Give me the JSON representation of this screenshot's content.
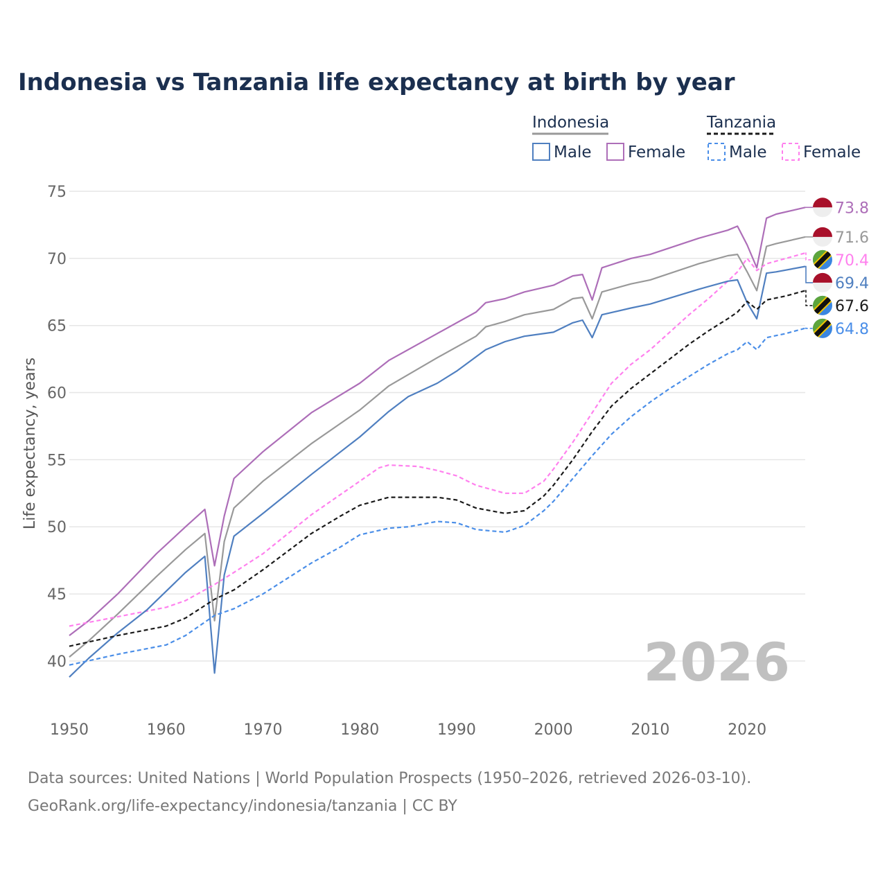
{
  "chart_data": {
    "type": "line",
    "title": "Indonesia vs Tanzania life expectancy at birth by year",
    "ylabel": "Life expectancy, years",
    "xlabel": "",
    "xlim": [
      1950,
      2026
    ],
    "ylim": [
      37,
      76.5
    ],
    "xticks": [
      1950,
      1960,
      1970,
      1980,
      1990,
      2000,
      2010,
      2020
    ],
    "yticks": [
      40,
      45,
      50,
      55,
      60,
      65,
      70,
      75
    ],
    "grid": true,
    "year_watermark": "2026",
    "legend": {
      "placement": "top-right",
      "groups": [
        {
          "name": "Indonesia",
          "items": [
            "Male",
            "Female"
          ]
        },
        {
          "name": "Tanzania",
          "items": [
            "Male",
            "Female"
          ]
        }
      ]
    },
    "series": [
      {
        "id": "idn_female",
        "country": "Indonesia",
        "sex": "Female",
        "name": "Indonesia Female",
        "color": "#ad6eb8",
        "dashed": false,
        "end_label": "73.8",
        "flag": "indonesia",
        "points": [
          [
            1950,
            41.9
          ],
          [
            1952,
            43.0
          ],
          [
            1955,
            45.0
          ],
          [
            1959,
            48.0
          ],
          [
            1962,
            50.0
          ],
          [
            1964,
            51.3
          ],
          [
            1965,
            47.1
          ],
          [
            1966,
            50.8
          ],
          [
            1967,
            53.6
          ],
          [
            1970,
            55.6
          ],
          [
            1975,
            58.5
          ],
          [
            1980,
            60.7
          ],
          [
            1983,
            62.4
          ],
          [
            1988,
            64.4
          ],
          [
            1992,
            66.0
          ],
          [
            1993,
            66.7
          ],
          [
            1995,
            67.0
          ],
          [
            1997,
            67.5
          ],
          [
            2000,
            68.0
          ],
          [
            2002,
            68.7
          ],
          [
            2003,
            68.8
          ],
          [
            2004,
            66.9
          ],
          [
            2005,
            69.3
          ],
          [
            2008,
            70.0
          ],
          [
            2010,
            70.3
          ],
          [
            2015,
            71.5
          ],
          [
            2018,
            72.1
          ],
          [
            2019,
            72.4
          ],
          [
            2020,
            71.0
          ],
          [
            2021,
            69.3
          ],
          [
            2022,
            73.0
          ],
          [
            2023,
            73.3
          ],
          [
            2026,
            73.8
          ]
        ]
      },
      {
        "id": "idn_total",
        "country": "Indonesia",
        "sex": "Total",
        "name": "Indonesia",
        "color": "#999999",
        "dashed": false,
        "end_label": "71.6",
        "flag": "indonesia",
        "points": [
          [
            1950,
            40.3
          ],
          [
            1952,
            41.5
          ],
          [
            1955,
            43.5
          ],
          [
            1959,
            46.3
          ],
          [
            1962,
            48.3
          ],
          [
            1964,
            49.5
          ],
          [
            1965,
            43.0
          ],
          [
            1966,
            48.9
          ],
          [
            1967,
            51.4
          ],
          [
            1970,
            53.4
          ],
          [
            1975,
            56.2
          ],
          [
            1980,
            58.7
          ],
          [
            1983,
            60.5
          ],
          [
            1988,
            62.6
          ],
          [
            1992,
            64.2
          ],
          [
            1993,
            64.9
          ],
          [
            1995,
            65.3
          ],
          [
            1997,
            65.8
          ],
          [
            2000,
            66.2
          ],
          [
            2002,
            67.0
          ],
          [
            2003,
            67.1
          ],
          [
            2004,
            65.5
          ],
          [
            2005,
            67.5
          ],
          [
            2008,
            68.1
          ],
          [
            2010,
            68.4
          ],
          [
            2015,
            69.6
          ],
          [
            2018,
            70.2
          ],
          [
            2019,
            70.3
          ],
          [
            2020,
            69.0
          ],
          [
            2021,
            67.6
          ],
          [
            2022,
            70.9
          ],
          [
            2023,
            71.1
          ],
          [
            2026,
            71.6
          ]
        ]
      },
      {
        "id": "tza_female",
        "country": "Tanzania",
        "sex": "Female",
        "name": "Tanzania Female",
        "color": "#ff80ee",
        "dashed": true,
        "end_label": "70.4",
        "flag": "tanzania",
        "points": [
          [
            1950,
            42.6
          ],
          [
            1955,
            43.3
          ],
          [
            1960,
            44.0
          ],
          [
            1962,
            44.5
          ],
          [
            1965,
            45.7
          ],
          [
            1967,
            46.6
          ],
          [
            1970,
            48.0
          ],
          [
            1975,
            50.9
          ],
          [
            1978,
            52.4
          ],
          [
            1980,
            53.4
          ],
          [
            1982,
            54.4
          ],
          [
            1983,
            54.6
          ],
          [
            1986,
            54.5
          ],
          [
            1988,
            54.2
          ],
          [
            1990,
            53.8
          ],
          [
            1992,
            53.1
          ],
          [
            1995,
            52.5
          ],
          [
            1997,
            52.5
          ],
          [
            1999,
            53.4
          ],
          [
            2000,
            54.3
          ],
          [
            2002,
            56.3
          ],
          [
            2004,
            58.5
          ],
          [
            2006,
            60.7
          ],
          [
            2008,
            62.1
          ],
          [
            2010,
            63.2
          ],
          [
            2012,
            64.5
          ],
          [
            2014,
            65.8
          ],
          [
            2016,
            67.0
          ],
          [
            2018,
            68.3
          ],
          [
            2019,
            69.0
          ],
          [
            2020,
            70.0
          ],
          [
            2021,
            69.1
          ],
          [
            2022,
            69.6
          ],
          [
            2024,
            70.0
          ],
          [
            2026,
            70.4
          ]
        ]
      },
      {
        "id": "idn_male",
        "country": "Indonesia",
        "sex": "Male",
        "name": "Indonesia Male",
        "color": "#4f7fc0",
        "dashed": false,
        "end_label": "69.4",
        "flag": "indonesia",
        "points": [
          [
            1950,
            38.8
          ],
          [
            1952,
            40.2
          ],
          [
            1955,
            42.1
          ],
          [
            1958,
            43.8
          ],
          [
            1959,
            44.5
          ],
          [
            1962,
            46.6
          ],
          [
            1964,
            47.8
          ],
          [
            1965,
            39.1
          ],
          [
            1966,
            46.4
          ],
          [
            1967,
            49.3
          ],
          [
            1970,
            51.0
          ],
          [
            1975,
            53.9
          ],
          [
            1980,
            56.7
          ],
          [
            1983,
            58.6
          ],
          [
            1985,
            59.7
          ],
          [
            1988,
            60.7
          ],
          [
            1990,
            61.6
          ],
          [
            1993,
            63.2
          ],
          [
            1995,
            63.8
          ],
          [
            1997,
            64.2
          ],
          [
            2000,
            64.5
          ],
          [
            2002,
            65.2
          ],
          [
            2003,
            65.4
          ],
          [
            2004,
            64.1
          ],
          [
            2005,
            65.8
          ],
          [
            2008,
            66.3
          ],
          [
            2010,
            66.6
          ],
          [
            2015,
            67.7
          ],
          [
            2018,
            68.3
          ],
          [
            2019,
            68.4
          ],
          [
            2020,
            66.7
          ],
          [
            2021,
            65.5
          ],
          [
            2022,
            68.9
          ],
          [
            2023,
            69.0
          ],
          [
            2026,
            69.4
          ]
        ]
      },
      {
        "id": "tza_total",
        "country": "Tanzania",
        "sex": "Total",
        "name": "Tanzania",
        "color": "#1a1a1a",
        "dashed": true,
        "end_label": "67.6",
        "flag": "tanzania",
        "points": [
          [
            1950,
            41.1
          ],
          [
            1955,
            41.9
          ],
          [
            1960,
            42.6
          ],
          [
            1962,
            43.2
          ],
          [
            1965,
            44.6
          ],
          [
            1967,
            45.3
          ],
          [
            1970,
            46.8
          ],
          [
            1975,
            49.5
          ],
          [
            1978,
            50.8
          ],
          [
            1980,
            51.6
          ],
          [
            1983,
            52.2
          ],
          [
            1986,
            52.2
          ],
          [
            1988,
            52.2
          ],
          [
            1990,
            52.0
          ],
          [
            1992,
            51.4
          ],
          [
            1995,
            51.0
          ],
          [
            1997,
            51.2
          ],
          [
            1999,
            52.3
          ],
          [
            2000,
            53.1
          ],
          [
            2002,
            55.0
          ],
          [
            2004,
            57.1
          ],
          [
            2006,
            59.0
          ],
          [
            2008,
            60.3
          ],
          [
            2010,
            61.4
          ],
          [
            2012,
            62.5
          ],
          [
            2014,
            63.6
          ],
          [
            2016,
            64.6
          ],
          [
            2018,
            65.5
          ],
          [
            2019,
            66.0
          ],
          [
            2020,
            66.8
          ],
          [
            2021,
            66.2
          ],
          [
            2022,
            66.9
          ],
          [
            2024,
            67.2
          ],
          [
            2026,
            67.6
          ]
        ]
      },
      {
        "id": "tza_male",
        "country": "Tanzania",
        "sex": "Male",
        "name": "Tanzania Male",
        "color": "#4a8ee8",
        "dashed": true,
        "end_label": "64.8",
        "flag": "tanzania",
        "points": [
          [
            1950,
            39.7
          ],
          [
            1955,
            40.5
          ],
          [
            1960,
            41.2
          ],
          [
            1962,
            41.9
          ],
          [
            1965,
            43.4
          ],
          [
            1967,
            43.9
          ],
          [
            1970,
            45.0
          ],
          [
            1975,
            47.3
          ],
          [
            1978,
            48.5
          ],
          [
            1980,
            49.4
          ],
          [
            1983,
            49.9
          ],
          [
            1985,
            50.0
          ],
          [
            1988,
            50.4
          ],
          [
            1990,
            50.3
          ],
          [
            1992,
            49.8
          ],
          [
            1995,
            49.6
          ],
          [
            1997,
            50.1
          ],
          [
            1999,
            51.2
          ],
          [
            2000,
            51.9
          ],
          [
            2002,
            53.6
          ],
          [
            2004,
            55.3
          ],
          [
            2006,
            56.9
          ],
          [
            2008,
            58.2
          ],
          [
            2010,
            59.3
          ],
          [
            2012,
            60.3
          ],
          [
            2014,
            61.2
          ],
          [
            2016,
            62.1
          ],
          [
            2018,
            62.9
          ],
          [
            2019,
            63.2
          ],
          [
            2020,
            63.8
          ],
          [
            2021,
            63.2
          ],
          [
            2022,
            64.1
          ],
          [
            2024,
            64.4
          ],
          [
            2026,
            64.8
          ]
        ]
      }
    ]
  },
  "footer": {
    "line1": "Data sources: United Nations | World Population Prospects (1950–2026, retrieved 2026-03-10).",
    "line2": "GeoRank.org/life-expectancy/indonesia/tanzania | CC BY"
  },
  "colors": {
    "title": "#1b2f4f",
    "axis_text": "#666666",
    "grid": "#e6e6e6",
    "watermark": "#c0c0c0"
  }
}
